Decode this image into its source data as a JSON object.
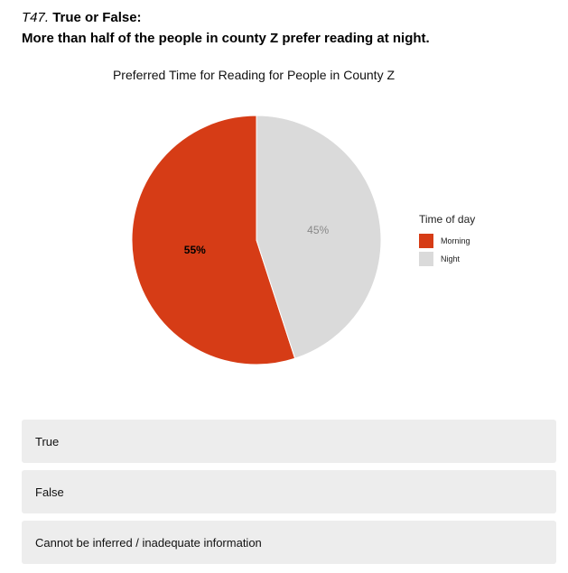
{
  "question": {
    "number": "T47.",
    "type": "True or False:",
    "statement": "More than half of the people in county Z prefer reading at night."
  },
  "chart_data": {
    "type": "pie",
    "title": "Preferred Time for Reading for People in County Z",
    "legend_title": "Time of day",
    "legend_position": "right",
    "slices": [
      {
        "label": "Morning",
        "value": 55,
        "display": "55%",
        "color": "#d63c16",
        "label_color": "#000000",
        "label_bold": true
      },
      {
        "label": "Night",
        "value": 45,
        "display": "45%",
        "color": "#dadada",
        "label_color": "#888888",
        "label_bold": false
      }
    ]
  },
  "options": [
    {
      "label": "True"
    },
    {
      "label": "False"
    },
    {
      "label": "Cannot be inferred / inadequate information"
    }
  ]
}
